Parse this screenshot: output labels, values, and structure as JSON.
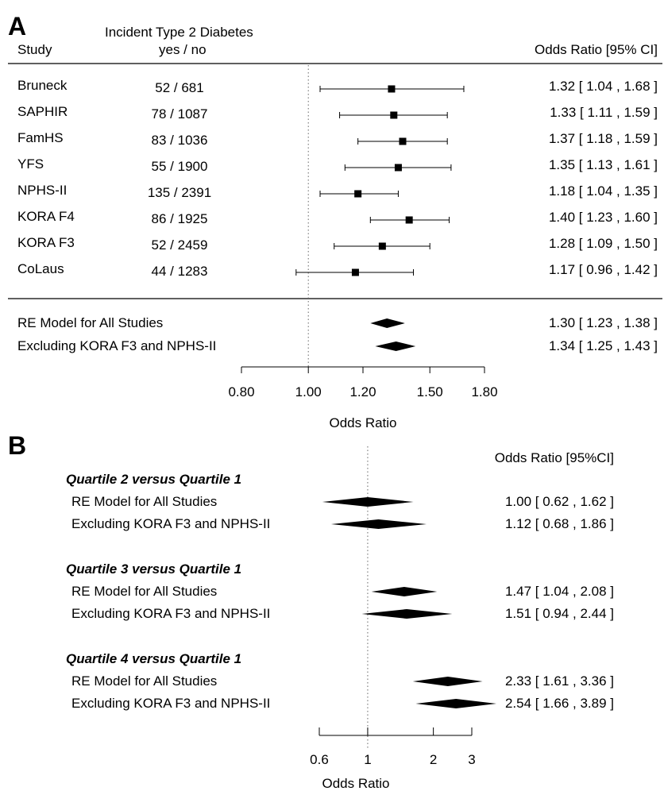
{
  "chart_data": [
    {
      "panel": "A",
      "type": "forest",
      "header": {
        "group_title": "Incident Type 2 Diabetes",
        "study": "Study",
        "counts": "yes / no",
        "or_col": "Odds Ratio [95% CI]"
      },
      "xlabel": "Odds Ratio",
      "log_scale": true,
      "ticks": [
        0.8,
        1.0,
        1.2,
        1.5,
        1.8
      ],
      "tick_labels": [
        "0.80",
        "1.00",
        "1.20",
        "1.50",
        "1.80"
      ],
      "xlim": [
        0.8,
        1.8
      ],
      "reference_line": 1.0,
      "studies": [
        {
          "name": "Bruneck",
          "counts": "52  /  681",
          "or": 1.32,
          "lo": 1.04,
          "hi": 1.68,
          "label": "1.32 [ 1.04 , 1.68 ]"
        },
        {
          "name": "SAPHIR",
          "counts": "78  /  1087",
          "or": 1.33,
          "lo": 1.11,
          "hi": 1.59,
          "label": "1.33 [ 1.11 , 1.59 ]"
        },
        {
          "name": "FamHS",
          "counts": "83  /  1036",
          "or": 1.37,
          "lo": 1.18,
          "hi": 1.59,
          "label": "1.37 [ 1.18 , 1.59 ]"
        },
        {
          "name": "YFS",
          "counts": "55  /  1900",
          "or": 1.35,
          "lo": 1.13,
          "hi": 1.61,
          "label": "1.35 [ 1.13 , 1.61 ]"
        },
        {
          "name": "NPHS-II",
          "counts": "135  /  2391",
          "or": 1.18,
          "lo": 1.04,
          "hi": 1.35,
          "label": "1.18 [ 1.04 , 1.35 ]"
        },
        {
          "name": "KORA F4",
          "counts": "86  /  1925",
          "or": 1.4,
          "lo": 1.23,
          "hi": 1.6,
          "label": "1.40 [ 1.23 , 1.60 ]"
        },
        {
          "name": "KORA F3",
          "counts": "52  /  2459",
          "or": 1.28,
          "lo": 1.09,
          "hi": 1.5,
          "label": "1.28 [ 1.09 , 1.50 ]"
        },
        {
          "name": "CoLaus",
          "counts": "44  /  1283",
          "or": 1.17,
          "lo": 0.96,
          "hi": 1.42,
          "label": "1.17 [ 0.96 , 1.42 ]"
        }
      ],
      "summaries": [
        {
          "name": "RE Model for All Studies",
          "or": 1.3,
          "lo": 1.23,
          "hi": 1.38,
          "label": "1.30 [ 1.23 , 1.38 ]"
        },
        {
          "name": "Excluding KORA F3 and NPHS-II",
          "or": 1.34,
          "lo": 1.25,
          "hi": 1.43,
          "label": "1.34 [ 1.25 , 1.43 ]"
        }
      ]
    },
    {
      "panel": "B",
      "type": "forest",
      "header": {
        "or_col": "Odds Ratio [95%CI]"
      },
      "xlabel": "Odds Ratio",
      "log_scale": true,
      "ticks": [
        0.6,
        1,
        2,
        3
      ],
      "tick_labels": [
        "0.6",
        "1",
        "2",
        "3"
      ],
      "xlim": [
        0.6,
        3
      ],
      "reference_line": 1,
      "groups": [
        {
          "title": "Quartile 2 versus Quartile 1",
          "rows": [
            {
              "name": "RE Model for All Studies",
              "or": 1.0,
              "lo": 0.62,
              "hi": 1.62,
              "label": "1.00 [ 0.62 , 1.62 ]"
            },
            {
              "name": "Excluding KORA F3 and NPHS-II",
              "or": 1.12,
              "lo": 0.68,
              "hi": 1.86,
              "label": "1.12 [ 0.68 , 1.86 ]"
            }
          ]
        },
        {
          "title": "Quartile 3 versus Quartile 1",
          "rows": [
            {
              "name": "RE Model for All Studies",
              "or": 1.47,
              "lo": 1.04,
              "hi": 2.08,
              "label": "1.47 [ 1.04 , 2.08 ]"
            },
            {
              "name": "Excluding KORA F3 and NPHS-II",
              "or": 1.51,
              "lo": 0.94,
              "hi": 2.44,
              "label": "1.51 [ 0.94 , 2.44 ]"
            }
          ]
        },
        {
          "title": "Quartile 4 versus Quartile 1",
          "rows": [
            {
              "name": "RE Model for All Studies",
              "or": 2.33,
              "lo": 1.61,
              "hi": 3.36,
              "label": "2.33 [ 1.61 , 3.36 ]"
            },
            {
              "name": "Excluding KORA F3 and NPHS-II",
              "or": 2.54,
              "lo": 1.66,
              "hi": 3.89,
              "label": "2.54 [ 1.66 , 3.89 ]"
            }
          ]
        }
      ]
    }
  ]
}
